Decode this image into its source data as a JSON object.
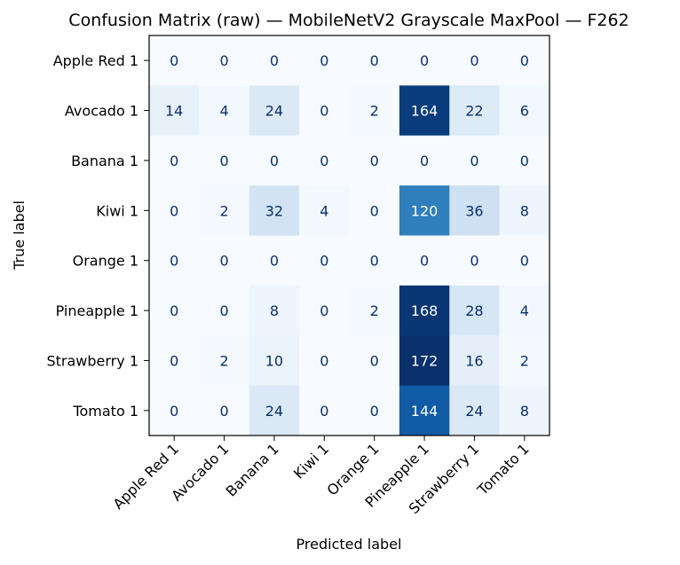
{
  "chart_data": {
    "type": "heatmap",
    "title": "Confusion Matrix (raw) — MobileNetV2 Grayscale MaxPool — F262",
    "xlabel": "Predicted label",
    "ylabel": "True label",
    "x_categories": [
      "Apple Red 1",
      "Avocado 1",
      "Banana 1",
      "Kiwi 1",
      "Orange 1",
      "Pineapple 1",
      "Strawberry 1",
      "Tomato 1"
    ],
    "y_categories": [
      "Apple Red 1",
      "Avocado 1",
      "Banana 1",
      "Kiwi 1",
      "Orange 1",
      "Pineapple 1",
      "Strawberry 1",
      "Tomato 1"
    ],
    "values": [
      [
        0,
        0,
        0,
        0,
        0,
        0,
        0,
        0
      ],
      [
        14,
        4,
        24,
        0,
        2,
        164,
        22,
        6
      ],
      [
        0,
        0,
        0,
        0,
        0,
        0,
        0,
        0
      ],
      [
        0,
        2,
        32,
        4,
        0,
        120,
        36,
        8
      ],
      [
        0,
        0,
        0,
        0,
        0,
        0,
        0,
        0
      ],
      [
        0,
        0,
        8,
        0,
        2,
        168,
        28,
        4
      ],
      [
        0,
        2,
        10,
        0,
        0,
        172,
        16,
        2
      ],
      [
        0,
        0,
        24,
        0,
        0,
        144,
        24,
        8
      ]
    ],
    "colormap": "Blues",
    "grid": false,
    "colorbar": false,
    "colors": {
      "low": "#f7fbff",
      "high": "#08306b",
      "text_dark": "#08306b",
      "text_light": "#ffffff"
    }
  }
}
